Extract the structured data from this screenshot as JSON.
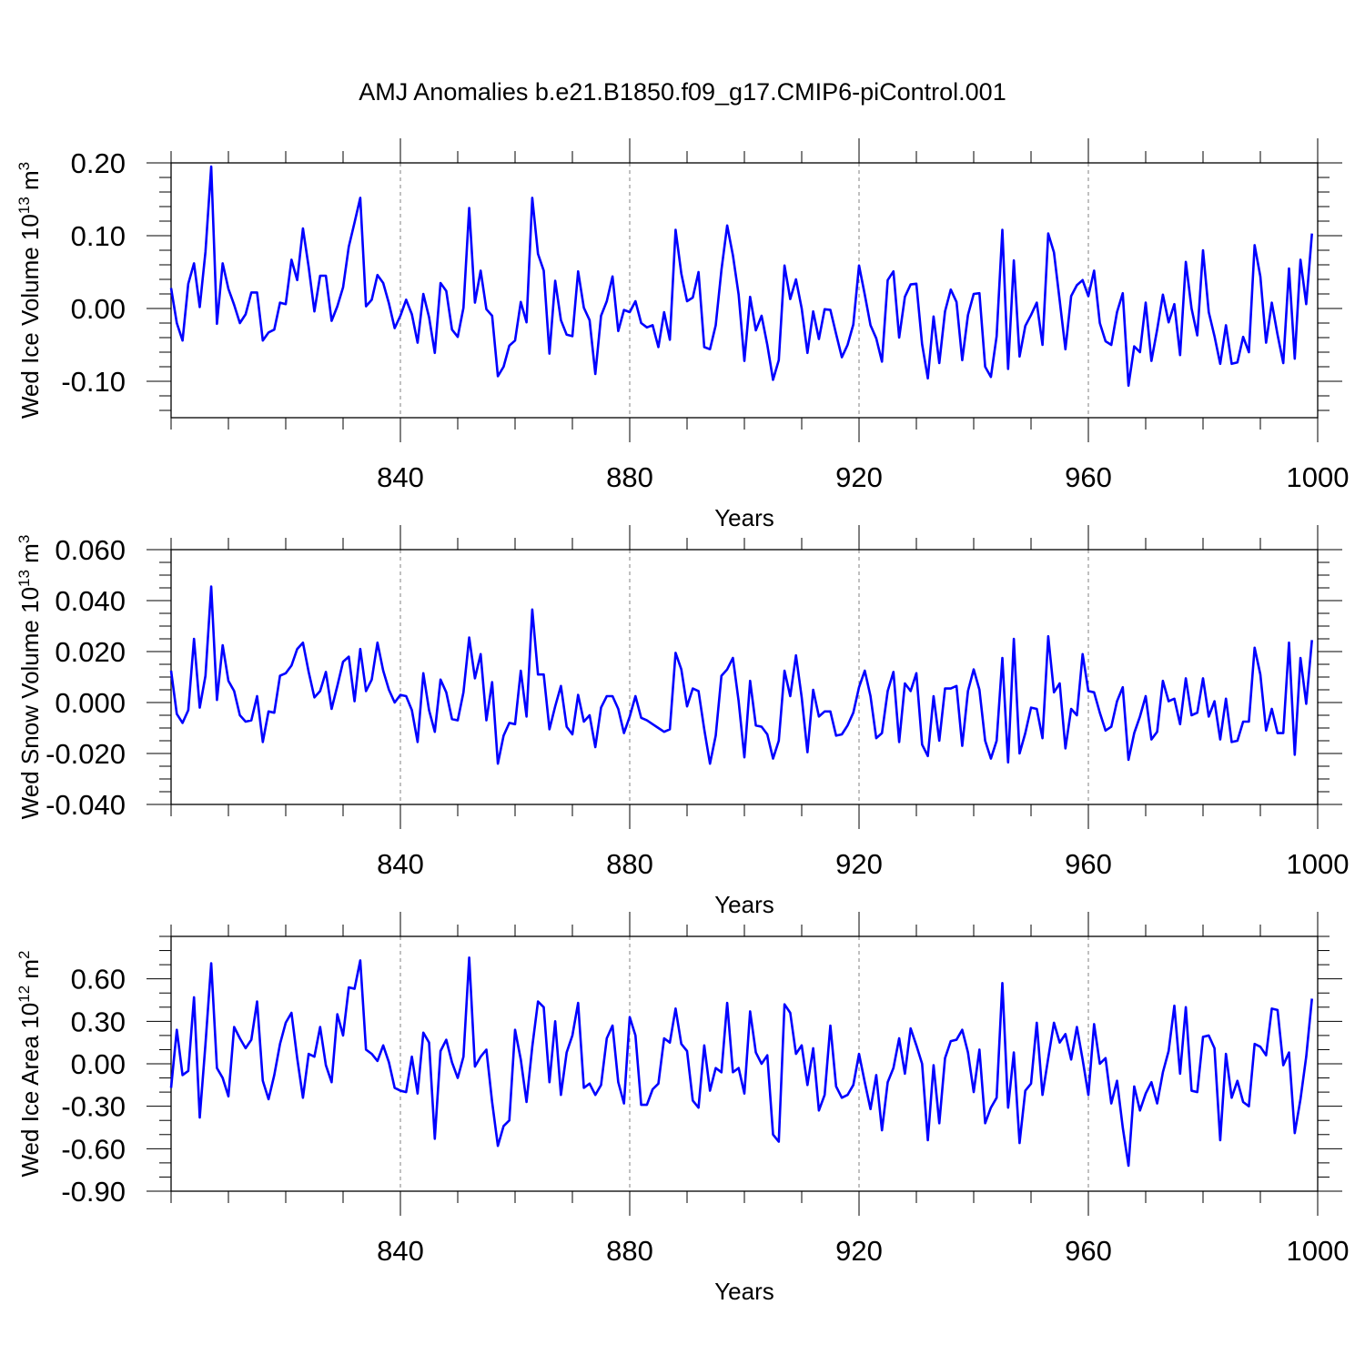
{
  "figure_title": "AMJ Anomalies b.e21.B1850.f09_g17.CMIP6-piControl.001",
  "colors": {
    "series": "#0000ff",
    "frame": "#000000",
    "grid": "#808080"
  },
  "chart_data": [
    {
      "type": "line",
      "title": "",
      "xlabel": "Years",
      "ylabel": "Wed Ice Volume 10",
      "ylabel_exponent": "13",
      "ylabel_unit": " m",
      "ylabel_unit_exponent": "3",
      "xlim": [
        800,
        1000
      ],
      "ylim": [
        -0.15,
        0.2
      ],
      "xticks": [
        840,
        880,
        920,
        960,
        1000
      ],
      "xtick_labels": [
        "840",
        "880",
        "920",
        "960",
        "1000"
      ],
      "yticks": [
        0.2,
        0.1,
        0.0,
        -0.1
      ],
      "ytick_labels": [
        "0.20",
        "0.10",
        "0.00",
        "-0.10"
      ],
      "y_minor_step": 0.02,
      "grid": "vertical dashed at x ticks",
      "series": [
        {
          "name": "Wed Ice Volume",
          "x_start": 800,
          "x_step": 1,
          "values": [
            0.028,
            -0.02,
            -0.044,
            0.034,
            0.062,
            0.002,
            0.078,
            0.195,
            -0.021,
            0.062,
            0.027,
            0.005,
            -0.02,
            -0.008,
            0.022,
            0.022,
            -0.044,
            -0.033,
            -0.029,
            0.008,
            0.006,
            0.067,
            0.039,
            0.11,
            0.057,
            -0.004,
            0.045,
            0.045,
            -0.017,
            0.003,
            0.029,
            0.085,
            0.118,
            0.152,
            0.003,
            0.012,
            0.046,
            0.035,
            0.007,
            -0.027,
            -0.01,
            0.012,
            -0.008,
            -0.047,
            0.02,
            -0.012,
            -0.061,
            0.035,
            0.024,
            -0.029,
            -0.039,
            0.001,
            0.138,
            0.008,
            0.052,
            -0.001,
            -0.01,
            -0.093,
            -0.08,
            -0.051,
            -0.044,
            0.009,
            -0.019,
            0.152,
            0.075,
            0.052,
            -0.062,
            0.038,
            -0.016,
            -0.036,
            -0.038,
            0.051,
            0.001,
            -0.016,
            -0.09,
            -0.01,
            0.01,
            0.044,
            -0.031,
            -0.002,
            -0.005,
            0.01,
            -0.02,
            -0.026,
            -0.023,
            -0.053,
            -0.005,
            -0.043,
            0.108,
            0.048,
            0.01,
            0.015,
            0.05,
            -0.053,
            -0.056,
            -0.023,
            0.053,
            0.114,
            0.073,
            0.019,
            -0.072,
            0.016,
            -0.03,
            -0.01,
            -0.05,
            -0.098,
            -0.071,
            0.059,
            0.013,
            0.04,
            0.0,
            -0.061,
            -0.004,
            -0.042,
            -0.001,
            -0.002,
            -0.035,
            -0.067,
            -0.05,
            -0.022,
            0.059,
            0.019,
            -0.023,
            -0.041,
            -0.073,
            0.039,
            0.051,
            -0.04,
            0.016,
            0.033,
            0.034,
            -0.049,
            -0.096,
            -0.011,
            -0.075,
            -0.004,
            0.026,
            0.009,
            -0.071,
            -0.009,
            0.02,
            0.021,
            -0.08,
            -0.094,
            -0.038,
            0.108,
            -0.083,
            0.066,
            -0.066,
            -0.024,
            -0.009,
            0.008,
            -0.05,
            0.103,
            0.077,
            0.011,
            -0.056,
            0.017,
            0.032,
            0.039,
            0.017,
            0.052,
            -0.02,
            -0.045,
            -0.05,
            -0.005,
            0.021,
            -0.106,
            -0.052,
            -0.06,
            0.008,
            -0.072,
            -0.029,
            0.019,
            -0.019,
            0.006,
            -0.064,
            0.064,
            0.0,
            -0.037,
            0.08,
            -0.005,
            -0.038,
            -0.076,
            -0.023,
            -0.076,
            -0.074,
            -0.039,
            -0.06,
            0.087,
            0.044,
            -0.047,
            0.008,
            -0.036,
            -0.075,
            0.055,
            -0.069,
            0.067,
            0.006,
            0.103
          ]
        }
      ]
    },
    {
      "type": "line",
      "title": "",
      "xlabel": "Years",
      "ylabel": "Wed Snow Volume 10",
      "ylabel_exponent": "13",
      "ylabel_unit": " m",
      "ylabel_unit_exponent": "3",
      "xlim": [
        800,
        1000
      ],
      "ylim": [
        -0.04,
        0.06
      ],
      "xticks": [
        840,
        880,
        920,
        960,
        1000
      ],
      "xtick_labels": [
        "840",
        "880",
        "920",
        "960",
        "1000"
      ],
      "yticks": [
        0.06,
        0.04,
        0.02,
        0.0,
        -0.02,
        -0.04
      ],
      "ytick_labels": [
        "0.060",
        "0.040",
        "0.020",
        "0.000",
        "-0.020",
        "-0.040"
      ],
      "y_minor_step": 0.005,
      "grid": "vertical dashed at x ticks",
      "series": [
        {
          "name": "Wed Snow Volume",
          "x_start": 800,
          "x_step": 1,
          "values": [
            0.0125,
            -0.0045,
            -0.008,
            -0.003,
            0.025,
            -0.002,
            0.0105,
            0.0455,
            0.001,
            0.0225,
            0.0085,
            0.0045,
            -0.005,
            -0.0075,
            -0.007,
            0.0025,
            -0.0155,
            -0.0035,
            -0.004,
            0.0105,
            0.0115,
            0.0145,
            0.021,
            0.0235,
            0.012,
            0.002,
            0.0045,
            0.012,
            -0.0025,
            0.0065,
            0.016,
            0.018,
            0.0005,
            0.021,
            0.0045,
            0.009,
            0.0235,
            0.0125,
            0.005,
            0.0,
            0.003,
            0.0025,
            -0.003,
            -0.0155,
            0.0115,
            -0.003,
            -0.0115,
            0.009,
            0.004,
            -0.0065,
            -0.007,
            0.004,
            0.0255,
            0.0095,
            0.019,
            -0.007,
            0.008,
            -0.024,
            -0.013,
            -0.008,
            -0.0085,
            0.0125,
            -0.0055,
            0.0365,
            0.011,
            0.011,
            -0.0105,
            -0.0015,
            0.0065,
            -0.0095,
            -0.0125,
            0.003,
            -0.0075,
            -0.005,
            -0.0175,
            -0.002,
            0.0025,
            0.0025,
            -0.0025,
            -0.012,
            -0.0055,
            0.0025,
            -0.006,
            -0.007,
            -0.0085,
            -0.01,
            -0.0115,
            -0.0105,
            0.0195,
            0.013,
            -0.0015,
            0.0055,
            0.0045,
            -0.0105,
            -0.024,
            -0.013,
            0.0105,
            0.013,
            0.0175,
            0.0005,
            -0.0215,
            0.0085,
            -0.009,
            -0.0095,
            -0.0125,
            -0.022,
            -0.015,
            0.0125,
            0.0025,
            0.0185,
            0.002,
            -0.0195,
            0.005,
            -0.0055,
            -0.0035,
            -0.0035,
            -0.013,
            -0.0125,
            -0.009,
            -0.004,
            0.006,
            0.0125,
            0.0025,
            -0.014,
            -0.012,
            0.0045,
            0.012,
            -0.0155,
            0.0075,
            0.0045,
            0.0115,
            -0.0165,
            -0.021,
            0.0025,
            -0.015,
            0.0055,
            0.0055,
            0.0065,
            -0.017,
            0.0045,
            0.013,
            0.005,
            -0.015,
            -0.022,
            -0.015,
            0.0175,
            -0.0235,
            0.025,
            -0.02,
            -0.012,
            -0.002,
            -0.0025,
            -0.014,
            0.026,
            0.004,
            0.0075,
            -0.018,
            -0.0025,
            -0.005,
            0.019,
            0.0045,
            0.004,
            -0.004,
            -0.011,
            -0.0095,
            0.0005,
            0.006,
            -0.0225,
            -0.012,
            -0.0055,
            0.0025,
            -0.0145,
            -0.0115,
            0.0085,
            0.0005,
            0.0015,
            -0.0085,
            0.0095,
            -0.005,
            -0.004,
            0.0095,
            -0.0055,
            0.0005,
            -0.0145,
            0.0015,
            -0.0155,
            -0.015,
            -0.0075,
            -0.0075,
            0.0215,
            0.011,
            -0.011,
            -0.0025,
            -0.012,
            -0.012,
            0.0235,
            -0.0205,
            0.0175,
            -0.0005,
            0.0245
          ]
        }
      ]
    },
    {
      "type": "line",
      "title": "",
      "xlabel": "Years",
      "ylabel": "Wed Ice Area 10",
      "ylabel_exponent": "12",
      "ylabel_unit": " m",
      "ylabel_unit_exponent": "2",
      "xlim": [
        800,
        1000
      ],
      "ylim": [
        -0.9,
        0.9
      ],
      "xticks": [
        840,
        880,
        920,
        960,
        1000
      ],
      "xtick_labels": [
        "840",
        "880",
        "920",
        "960",
        "1000"
      ],
      "yticks": [
        0.6,
        0.3,
        0.0,
        -0.3,
        -0.6,
        -0.9
      ],
      "ytick_labels": [
        "0.60",
        "0.30",
        "0.00",
        "-0.30",
        "-0.60",
        "-0.90"
      ],
      "y_minor_step": 0.1,
      "grid": "vertical dashed at x ticks",
      "series": [
        {
          "name": "Wed Ice Area",
          "x_start": 800,
          "x_step": 1,
          "values": [
            -0.17,
            0.24,
            -0.08,
            -0.05,
            0.47,
            -0.38,
            0.14,
            0.71,
            -0.03,
            -0.1,
            -0.23,
            0.26,
            0.18,
            0.11,
            0.17,
            0.44,
            -0.12,
            -0.25,
            -0.08,
            0.14,
            0.29,
            0.36,
            0.04,
            -0.24,
            0.07,
            0.05,
            0.26,
            -0.01,
            -0.13,
            0.35,
            0.2,
            0.54,
            0.53,
            0.73,
            0.1,
            0.07,
            0.02,
            0.13,
            0.01,
            -0.17,
            -0.19,
            -0.2,
            0.05,
            -0.21,
            0.22,
            0.15,
            -0.53,
            0.09,
            0.17,
            0.01,
            -0.1,
            0.05,
            0.75,
            -0.02,
            0.05,
            0.1,
            -0.27,
            -0.58,
            -0.44,
            -0.4,
            0.24,
            0.03,
            -0.27,
            0.12,
            0.44,
            0.4,
            -0.13,
            0.3,
            -0.22,
            0.08,
            0.2,
            0.43,
            -0.17,
            -0.14,
            -0.22,
            -0.15,
            0.18,
            0.27,
            -0.13,
            -0.28,
            0.33,
            0.2,
            -0.29,
            -0.29,
            -0.18,
            -0.14,
            0.18,
            0.15,
            0.39,
            0.14,
            0.09,
            -0.26,
            -0.31,
            0.13,
            -0.19,
            -0.03,
            -0.06,
            0.43,
            -0.06,
            -0.03,
            -0.21,
            0.37,
            0.08,
            0.0,
            0.06,
            -0.5,
            -0.55,
            0.42,
            0.36,
            0.07,
            0.13,
            -0.15,
            0.11,
            -0.33,
            -0.22,
            0.27,
            -0.16,
            -0.24,
            -0.22,
            -0.15,
            0.07,
            -0.13,
            -0.32,
            -0.08,
            -0.47,
            -0.13,
            -0.03,
            0.18,
            -0.07,
            0.25,
            0.13,
            0.0,
            -0.54,
            -0.01,
            -0.42,
            0.04,
            0.16,
            0.17,
            0.24,
            0.08,
            -0.2,
            0.1,
            -0.42,
            -0.31,
            -0.24,
            0.57,
            -0.31,
            0.08,
            -0.56,
            -0.19,
            -0.14,
            0.29,
            -0.22,
            0.04,
            0.29,
            0.15,
            0.21,
            0.03,
            0.26,
            0.03,
            -0.22,
            0.28,
            0.0,
            0.04,
            -0.28,
            -0.12,
            -0.45,
            -0.72,
            -0.16,
            -0.33,
            -0.21,
            -0.13,
            -0.28,
            -0.06,
            0.09,
            0.41,
            -0.07,
            0.4,
            -0.19,
            -0.2,
            0.19,
            0.2,
            0.11,
            -0.54,
            0.07,
            -0.24,
            -0.12,
            -0.27,
            -0.3,
            0.14,
            0.12,
            0.06,
            0.39,
            0.38,
            -0.01,
            0.08,
            -0.49,
            -0.25,
            0.05,
            0.46
          ]
        }
      ]
    }
  ]
}
